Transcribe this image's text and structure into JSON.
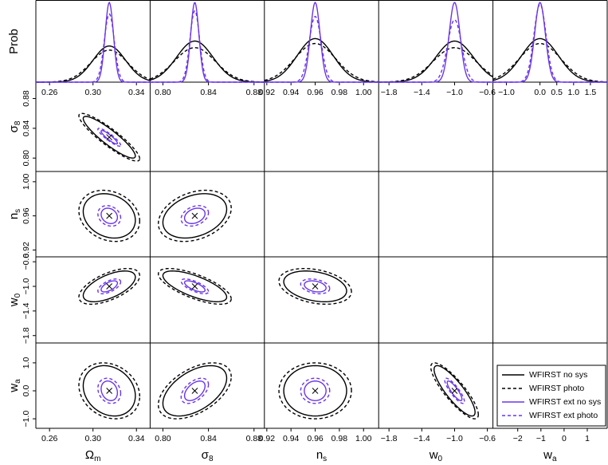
{
  "chart_data": {
    "type": "corner",
    "marginal_ylabel": "Prob",
    "marginal_ylim": [
      0,
      1
    ],
    "params": [
      {
        "symbol": "Ω",
        "subscript": "m",
        "fiducial": 0.315,
        "xlim": [
          0.2474,
          0.3526
        ],
        "xticks": [
          0.26,
          {
            "value": 0.3,
            "label": "0.30"
          },
          0.34
        ]
      },
      {
        "symbol": "σ",
        "subscript": "8",
        "fiducial": 0.828,
        "xlim": [
          0.7888,
          0.8891
        ],
        "xticks": [
          {
            "value": 0.8,
            "label": "0.80"
          },
          0.84,
          0.88
        ],
        "ylim": [
          0.782,
          0.902
        ],
        "yticks": [
          {
            "value": 0.8,
            "label": "0.80"
          },
          0.84,
          0.88
        ]
      },
      {
        "symbol": "n",
        "subscript": "s",
        "fiducial": 0.96,
        "xlim": [
          0.918,
          1.0125
        ],
        "xticks": [
          0.92,
          0.94,
          0.96,
          0.98,
          {
            "value": 1,
            "label": "1.00"
          }
        ],
        "ylim": [
          0.912,
          1.012
        ],
        "yticks": [
          0.92,
          0.96,
          {
            "value": 1,
            "label": "1.00"
          }
        ]
      },
      {
        "symbol": "w",
        "subscript": "0",
        "fiducial": -1,
        "xlim": [
          -1.926,
          -0.532
        ],
        "xticks": [
          {
            "value": -1.8,
            "label": "−1.8"
          },
          {
            "value": -1.4,
            "label": "−1.4"
          },
          {
            "value": -1,
            "label": "−1.0"
          },
          {
            "value": -0.6,
            "label": "−0.6"
          }
        ],
        "ylim": [
          -1.92,
          -0.52
        ],
        "yticks": [
          {
            "value": -1.8,
            "label": "−1.8"
          },
          {
            "value": -1.4,
            "label": "−1.4"
          },
          {
            "value": -1,
            "label": "−1.0"
          },
          {
            "value": -0.6,
            "label": "−0.6"
          }
        ]
      },
      {
        "symbol": "w",
        "subscript": "a",
        "fiducial": 0,
        "xlim": [
          -3.07,
          1.86
        ],
        "xticks": [
          {
            "value": -2,
            "label": "−2"
          },
          {
            "value": -1,
            "label": "−1"
          },
          0,
          1
        ],
        "marginal_xlim": [
          -1.4,
          2.0
        ],
        "marginal_xticks": [
          {
            "value": -1,
            "label": "−1.0"
          },
          {
            "value": 0,
            "label": "0.0"
          },
          0.5,
          {
            "value": 1,
            "label": "1.0"
          },
          1.5
        ],
        "ylim": [
          -1.34,
          1.71
        ],
        "yticks": [
          {
            "value": -1,
            "label": "−1.0"
          },
          {
            "value": 0,
            "label": "0.0"
          },
          {
            "value": 1,
            "label": "1.0"
          }
        ]
      }
    ],
    "correlations": [
      [
        -0.9
      ],
      [
        -0.2,
        0.3
      ],
      [
        0.6,
        -0.7,
        -0.3
      ],
      [
        -0.2,
        0.5,
        0,
        -0.85
      ]
    ],
    "series": [
      {
        "name": "WFIRST no sys",
        "color": "#000000",
        "dashed": false,
        "marginal_peaks": [
          0.44,
          0.5,
          0.53,
          0.5,
          0.53
        ],
        "marginal_widths": [
          0.015,
          0.016,
          0.015,
          0.23,
          0.55
        ],
        "contour_halfwidths": [
          0.024,
          0.028,
          0.026,
          0.25,
          0.9
        ]
      },
      {
        "name": "WFIRST photo",
        "color": "#000000",
        "dashed": true,
        "marginal_peaks": [
          0.39,
          0.42,
          0.47,
          0.42,
          0.47
        ],
        "marginal_widths": [
          0.017,
          0.018,
          0.017,
          0.26,
          0.62
        ],
        "contour_halfwidths": [
          0.028,
          0.032,
          0.03,
          0.29,
          1.0
        ]
      },
      {
        "name": "WFIRST ext no sys",
        "color": "#6a35e8",
        "dashed": false,
        "marginal_peaks": [
          0.97,
          0.97,
          0.97,
          0.97,
          0.97
        ],
        "marginal_widths": [
          0.0038,
          0.0036,
          0.004,
          0.066,
          0.16
        ],
        "contour_halfwidths": [
          0.0075,
          0.009,
          0.009,
          0.09,
          0.35
        ]
      },
      {
        "name": "WFIRST ext photo",
        "color": "#6a35e8",
        "dashed": true,
        "marginal_peaks": [
          0.83,
          0.87,
          0.8,
          0.76,
          0.95
        ],
        "marginal_widths": [
          0.0046,
          0.0042,
          0.005,
          0.085,
          0.18
        ],
        "contour_halfwidths": [
          0.0105,
          0.012,
          0.012,
          0.12,
          0.45
        ]
      }
    ],
    "legend": "bottom-right"
  }
}
